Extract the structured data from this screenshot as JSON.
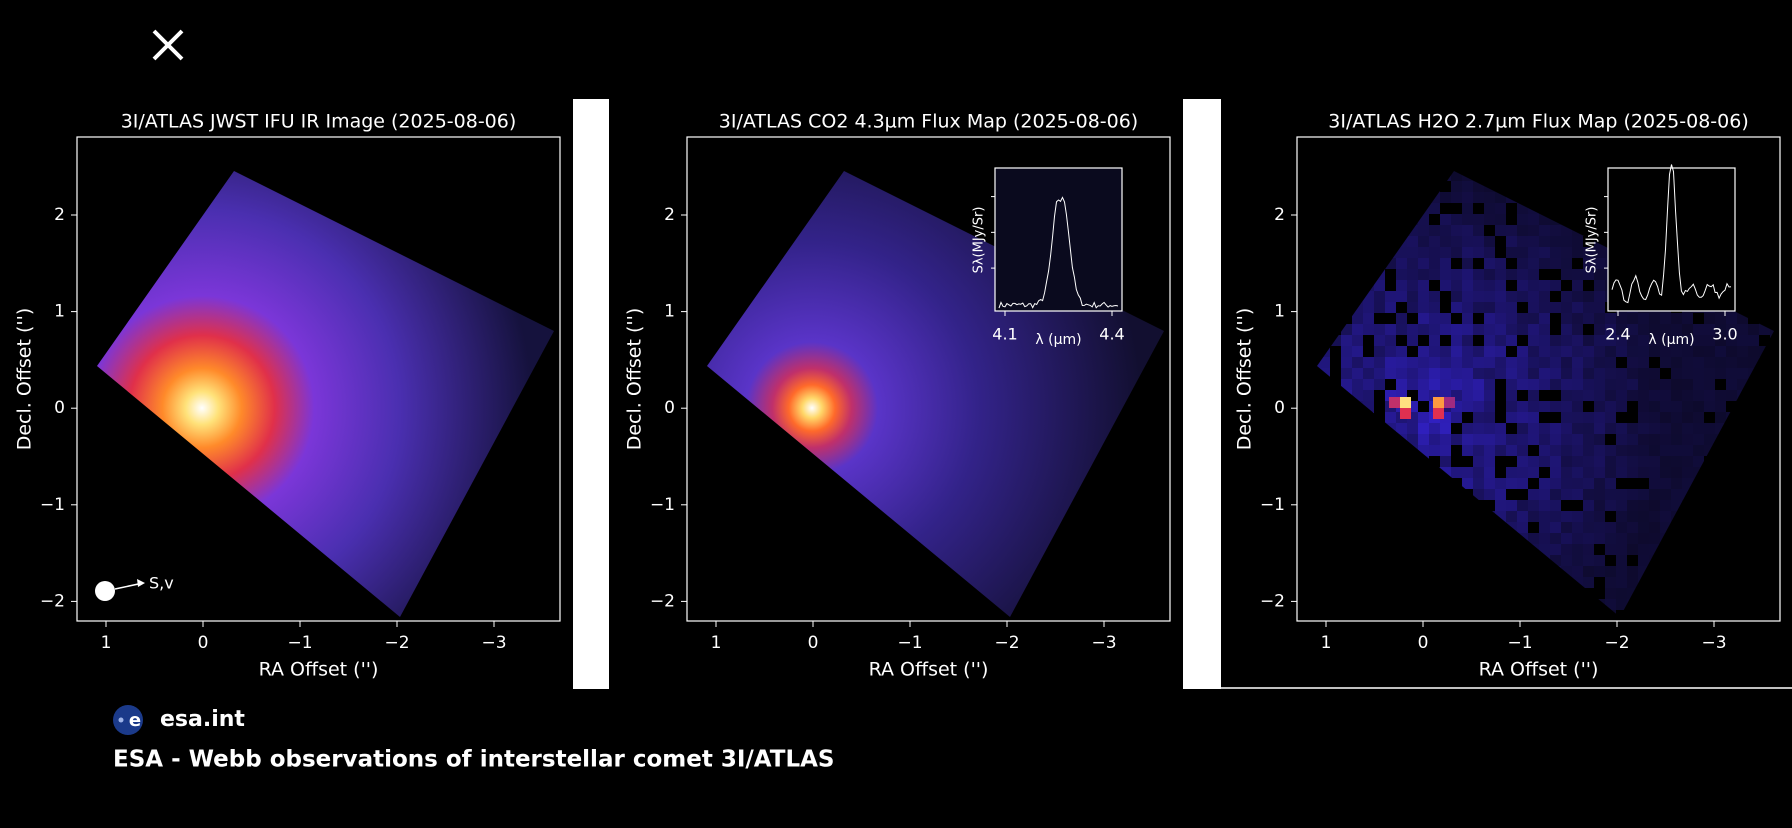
{
  "panels": [
    {
      "title": "3I/ATLAS JWST IFU IR Image (2025-08-06)",
      "xlabel": "RA Offset ('')",
      "ylabel": "Decl. Offset ('')",
      "xticks": [
        "1",
        "0",
        "−1",
        "−2",
        "−3"
      ],
      "yticks": [
        "2",
        "1",
        "0",
        "−1",
        "−2"
      ],
      "annotation": "S,v"
    },
    {
      "title": "3I/ATLAS CO2 4.3µm Flux Map (2025-08-06)",
      "xlabel": "RA Offset ('')",
      "ylabel": "Decl. Offset ('')",
      "xticks": [
        "1",
        "0",
        "−1",
        "−2",
        "−3"
      ],
      "yticks": [
        "2",
        "1",
        "0",
        "−1",
        "−2"
      ],
      "inset": {
        "xticks": [
          "4.1",
          "4.4"
        ],
        "xlabel": "λ (µm)",
        "ylabel": "Sλ(MJy/Sr)"
      }
    },
    {
      "title": "3I/ATLAS H2O 2.7µm Flux Map (2025-08-06)",
      "xlabel": "RA Offset ('')",
      "ylabel": "Decl. Offset ('')",
      "xticks": [
        "1",
        "0",
        "−1",
        "−2",
        "−3"
      ],
      "yticks": [
        "2",
        "1",
        "0",
        "−1",
        "−2"
      ],
      "inset": {
        "xticks": [
          "2.4",
          "3.0"
        ],
        "xlabel": "λ (µm)",
        "ylabel": "Sλ(MJy/Sr)"
      }
    }
  ],
  "source": "esa.int",
  "caption": "ESA - Webb observations of interstellar comet 3I/ATLAS"
}
